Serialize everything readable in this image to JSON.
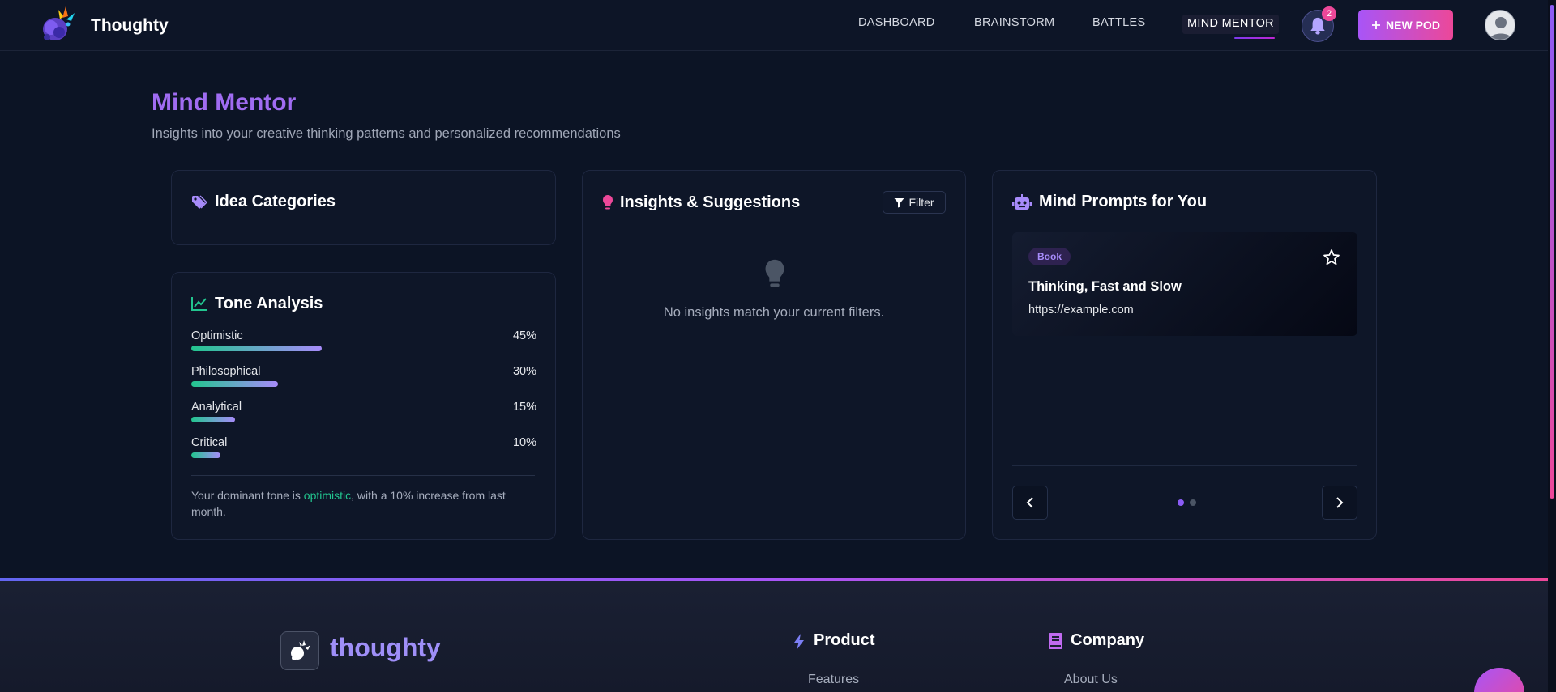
{
  "header": {
    "brand": "Thoughty",
    "nav": [
      "DASHBOARD",
      "BRAINSTORM",
      "BATTLES",
      "MIND MENTOR"
    ],
    "notification_count": "2",
    "new_pod_label": "NEW POD",
    "icons": {
      "bell": "bell-icon",
      "plus": "plus-icon",
      "avatar": "user-avatar-icon"
    }
  },
  "page": {
    "title": "Mind Mentor",
    "subtitle": "Insights into your creative thinking patterns and personalized recommendations"
  },
  "idea_categories": {
    "title": "Idea Categories",
    "icon": "tag-icon"
  },
  "tone_analysis": {
    "title": "Tone Analysis",
    "icon": "chart-line-icon",
    "items": [
      {
        "label": "Optimistic",
        "percent": "45%",
        "value": 45
      },
      {
        "label": "Philosophical",
        "percent": "30%",
        "value": 30
      },
      {
        "label": "Analytical",
        "percent": "15%",
        "value": 15
      },
      {
        "label": "Critical",
        "percent": "10%",
        "value": 10
      }
    ],
    "summary_prefix": "Your dominant tone is ",
    "summary_highlight": "optimistic",
    "summary_suffix": ", with a 10% increase from last month."
  },
  "insights": {
    "title": "Insights & Suggestions",
    "icon": "lightbulb-icon",
    "filter_label": "Filter",
    "empty_message": "No insights match your current filters."
  },
  "mind_prompts": {
    "title": "Mind Prompts for You",
    "icon": "robot-icon",
    "card": {
      "badge": "Book",
      "title": "Thinking, Fast and Slow",
      "url": "https://example.com"
    },
    "pages": 2,
    "active_page": 1
  },
  "footer": {
    "brand": "thoughty",
    "columns": [
      {
        "title": "Product",
        "icon": "bolt-icon",
        "links": [
          "Features"
        ]
      },
      {
        "title": "Company",
        "icon": "book-icon",
        "links": [
          "About Us"
        ]
      }
    ]
  },
  "colors": {
    "accent": "#a855f7",
    "pink": "#ec4899",
    "green": "#22c58f",
    "bg": "#0c1425"
  }
}
